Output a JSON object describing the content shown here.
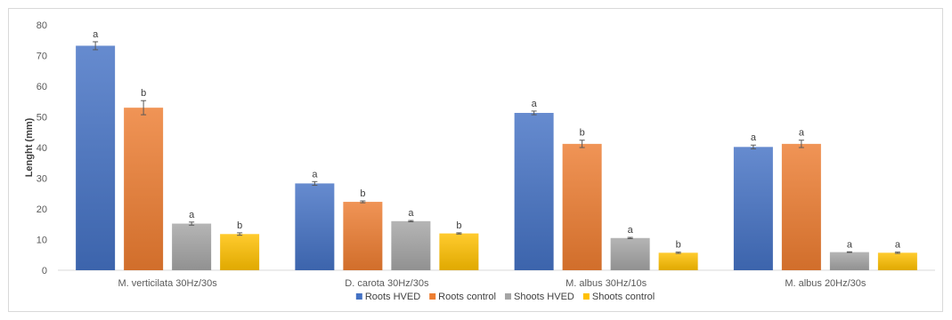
{
  "chart_data": {
    "type": "bar",
    "title": "",
    "xlabel": "",
    "ylabel": "Lenght (mm)",
    "ylim": [
      0,
      80
    ],
    "yticks": [
      0,
      10,
      20,
      30,
      40,
      50,
      60,
      70,
      80
    ],
    "grid": false,
    "legend_position": "bottom",
    "categories": [
      "M. verticilata 30Hz/30s",
      "D. carota 30Hz/30s",
      "M. albus 30Hz/10s",
      "M. albus 20Hz/30s"
    ],
    "series": [
      {
        "name": "Roots HVED",
        "color": "#4472c4",
        "values": [
          73.2,
          28.3,
          51.3,
          40.2
        ],
        "errors": [
          1.3,
          0.6,
          0.6,
          0.6
        ],
        "letters": [
          "a",
          "a",
          "a",
          "a"
        ]
      },
      {
        "name": "Roots control",
        "color": "#ed7d31",
        "values": [
          53.0,
          22.3,
          41.2,
          41.2
        ],
        "errors": [
          2.3,
          0.3,
          1.2,
          1.2
        ],
        "letters": [
          "b",
          "b",
          "b",
          "a"
        ]
      },
      {
        "name": "Shoots HVED",
        "color": "#a5a5a5",
        "values": [
          15.2,
          16.0,
          10.5,
          5.9
        ],
        "errors": [
          0.5,
          0.2,
          0.2,
          0.1
        ],
        "letters": [
          "a",
          "a",
          "a",
          "a"
        ]
      },
      {
        "name": "Shoots control",
        "color": "#ffc000",
        "values": [
          11.8,
          12.0,
          5.7,
          5.7
        ],
        "errors": [
          0.4,
          0.2,
          0.2,
          0.2
        ],
        "letters": [
          "b",
          "b",
          "b",
          "a"
        ]
      }
    ]
  }
}
